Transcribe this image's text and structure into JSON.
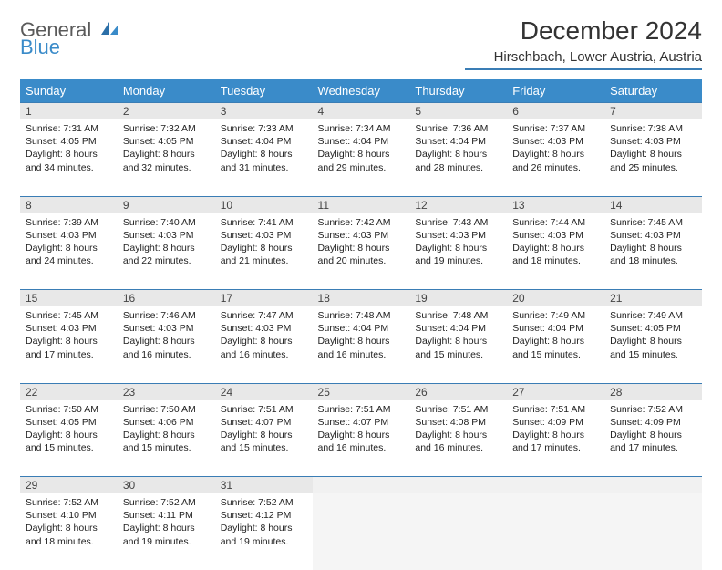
{
  "brand": {
    "part1": "General",
    "part2": "Blue"
  },
  "title": "December 2024",
  "location": "Hirschbach, Lower Austria, Austria",
  "colors": {
    "header_bg": "#3a8bc9",
    "header_text": "#ffffff",
    "divider": "#3a7db5",
    "daynum_bg": "#e8e8e8",
    "empty_bg": "#f1f1f1",
    "logo_gray": "#5a5a5a",
    "logo_blue": "#3a8bc9"
  },
  "weekdays": [
    "Sunday",
    "Monday",
    "Tuesday",
    "Wednesday",
    "Thursday",
    "Friday",
    "Saturday"
  ],
  "weeks": [
    [
      {
        "n": "1",
        "sr": "7:31 AM",
        "ss": "4:05 PM",
        "dl": "8 hours and 34 minutes."
      },
      {
        "n": "2",
        "sr": "7:32 AM",
        "ss": "4:05 PM",
        "dl": "8 hours and 32 minutes."
      },
      {
        "n": "3",
        "sr": "7:33 AM",
        "ss": "4:04 PM",
        "dl": "8 hours and 31 minutes."
      },
      {
        "n": "4",
        "sr": "7:34 AM",
        "ss": "4:04 PM",
        "dl": "8 hours and 29 minutes."
      },
      {
        "n": "5",
        "sr": "7:36 AM",
        "ss": "4:04 PM",
        "dl": "8 hours and 28 minutes."
      },
      {
        "n": "6",
        "sr": "7:37 AM",
        "ss": "4:03 PM",
        "dl": "8 hours and 26 minutes."
      },
      {
        "n": "7",
        "sr": "7:38 AM",
        "ss": "4:03 PM",
        "dl": "8 hours and 25 minutes."
      }
    ],
    [
      {
        "n": "8",
        "sr": "7:39 AM",
        "ss": "4:03 PM",
        "dl": "8 hours and 24 minutes."
      },
      {
        "n": "9",
        "sr": "7:40 AM",
        "ss": "4:03 PM",
        "dl": "8 hours and 22 minutes."
      },
      {
        "n": "10",
        "sr": "7:41 AM",
        "ss": "4:03 PM",
        "dl": "8 hours and 21 minutes."
      },
      {
        "n": "11",
        "sr": "7:42 AM",
        "ss": "4:03 PM",
        "dl": "8 hours and 20 minutes."
      },
      {
        "n": "12",
        "sr": "7:43 AM",
        "ss": "4:03 PM",
        "dl": "8 hours and 19 minutes."
      },
      {
        "n": "13",
        "sr": "7:44 AM",
        "ss": "4:03 PM",
        "dl": "8 hours and 18 minutes."
      },
      {
        "n": "14",
        "sr": "7:45 AM",
        "ss": "4:03 PM",
        "dl": "8 hours and 18 minutes."
      }
    ],
    [
      {
        "n": "15",
        "sr": "7:45 AM",
        "ss": "4:03 PM",
        "dl": "8 hours and 17 minutes."
      },
      {
        "n": "16",
        "sr": "7:46 AM",
        "ss": "4:03 PM",
        "dl": "8 hours and 16 minutes."
      },
      {
        "n": "17",
        "sr": "7:47 AM",
        "ss": "4:03 PM",
        "dl": "8 hours and 16 minutes."
      },
      {
        "n": "18",
        "sr": "7:48 AM",
        "ss": "4:04 PM",
        "dl": "8 hours and 16 minutes."
      },
      {
        "n": "19",
        "sr": "7:48 AM",
        "ss": "4:04 PM",
        "dl": "8 hours and 15 minutes."
      },
      {
        "n": "20",
        "sr": "7:49 AM",
        "ss": "4:04 PM",
        "dl": "8 hours and 15 minutes."
      },
      {
        "n": "21",
        "sr": "7:49 AM",
        "ss": "4:05 PM",
        "dl": "8 hours and 15 minutes."
      }
    ],
    [
      {
        "n": "22",
        "sr": "7:50 AM",
        "ss": "4:05 PM",
        "dl": "8 hours and 15 minutes."
      },
      {
        "n": "23",
        "sr": "7:50 AM",
        "ss": "4:06 PM",
        "dl": "8 hours and 15 minutes."
      },
      {
        "n": "24",
        "sr": "7:51 AM",
        "ss": "4:07 PM",
        "dl": "8 hours and 15 minutes."
      },
      {
        "n": "25",
        "sr": "7:51 AM",
        "ss": "4:07 PM",
        "dl": "8 hours and 16 minutes."
      },
      {
        "n": "26",
        "sr": "7:51 AM",
        "ss": "4:08 PM",
        "dl": "8 hours and 16 minutes."
      },
      {
        "n": "27",
        "sr": "7:51 AM",
        "ss": "4:09 PM",
        "dl": "8 hours and 17 minutes."
      },
      {
        "n": "28",
        "sr": "7:52 AM",
        "ss": "4:09 PM",
        "dl": "8 hours and 17 minutes."
      }
    ],
    [
      {
        "n": "29",
        "sr": "7:52 AM",
        "ss": "4:10 PM",
        "dl": "8 hours and 18 minutes."
      },
      {
        "n": "30",
        "sr": "7:52 AM",
        "ss": "4:11 PM",
        "dl": "8 hours and 19 minutes."
      },
      {
        "n": "31",
        "sr": "7:52 AM",
        "ss": "4:12 PM",
        "dl": "8 hours and 19 minutes."
      },
      null,
      null,
      null,
      null
    ]
  ],
  "labels": {
    "sunrise": "Sunrise:",
    "sunset": "Sunset:",
    "daylight": "Daylight:"
  }
}
